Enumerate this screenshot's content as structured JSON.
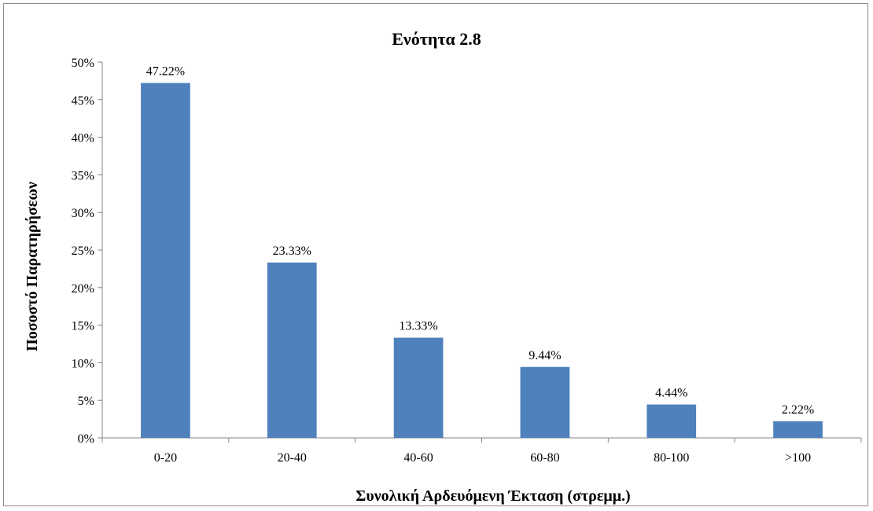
{
  "chart_data": {
    "type": "bar",
    "title": "Ενότητα 2.8",
    "xlabel": "Συνολική Αρδευόμενη Έκταση (στρεμμ.)",
    "ylabel": "Ποσοστό Παρατηρήσεων",
    "categories": [
      "0-20",
      "20-40",
      "40-60",
      "60-80",
      "80-100",
      ">100"
    ],
    "values": [
      47.22,
      23.33,
      13.33,
      9.44,
      4.44,
      2.22
    ],
    "data_labels": [
      "47.22%",
      "23.33%",
      "13.33%",
      "9.44%",
      "4.44%",
      "2.22%"
    ],
    "ylim": [
      0,
      50
    ],
    "yticks": [
      0,
      5,
      10,
      15,
      20,
      25,
      30,
      35,
      40,
      45,
      50
    ],
    "ytick_labels": [
      "0%",
      "5%",
      "10%",
      "15%",
      "20%",
      "25%",
      "30%",
      "35%",
      "40%",
      "45%",
      "50%"
    ],
    "grid": false,
    "legend": "none",
    "bar_color": "#4f81bd",
    "axis_color": "#868686"
  }
}
